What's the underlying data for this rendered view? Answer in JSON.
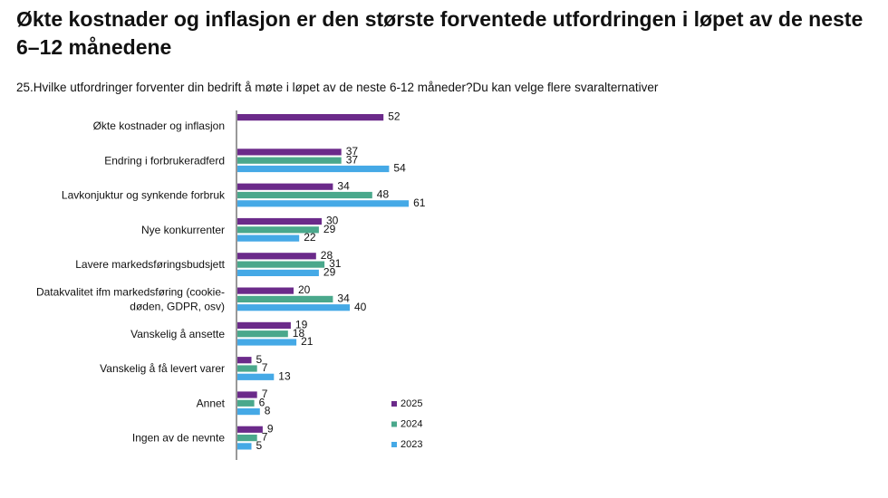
{
  "page": {
    "title": "Økte kostnader og inflasjon er den største forventede utfordringen i løpet av de neste 6–12 månedene",
    "question": "25.Hvilke utfordringer forventer din bedrift å møte i løpet av de neste 6-12 måneder?Du kan velge flere svaralternativer"
  },
  "chart_data": {
    "type": "bar",
    "orientation": "horizontal",
    "categories": [
      [
        "Økte kostnader og inflasjon"
      ],
      [
        "Endring i forbrukeradferd"
      ],
      [
        "Lavkonjuktur og synkende forbruk"
      ],
      [
        "Nye konkurrenter"
      ],
      [
        "Lavere markedsføringsbudsjett"
      ],
      [
        "Datakvalitet ifm markedsføring (cookie-",
        "døden, GDPR, osv)"
      ],
      [
        "Vanskelig å ansette"
      ],
      [
        "Vanskelig å få levert varer"
      ],
      [
        "Annet"
      ],
      [
        "Ingen av de nevnte"
      ]
    ],
    "series": [
      {
        "name": "2025",
        "color": "#6b2a8a",
        "values": [
          52,
          37,
          34,
          30,
          28,
          20,
          19,
          5,
          7,
          9
        ]
      },
      {
        "name": "2024",
        "color": "#4aa88c",
        "values": [
          null,
          37,
          48,
          29,
          31,
          34,
          18,
          7,
          6,
          7
        ]
      },
      {
        "name": "2023",
        "color": "#45a9e6",
        "values": [
          null,
          54,
          61,
          22,
          29,
          40,
          21,
          13,
          8,
          5
        ]
      }
    ],
    "legend_position": "bottom-right",
    "grid": false
  }
}
